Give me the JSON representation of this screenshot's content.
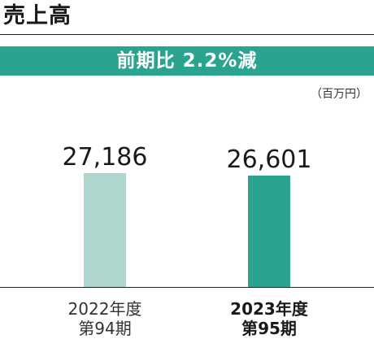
{
  "header": {
    "title": "売上高"
  },
  "banner": {
    "text": "前期比  2.2%減"
  },
  "unit_label": "（百万円）",
  "colors": {
    "bar_prev": "#aed6ce",
    "bar_current": "#2aa48f",
    "banner": "#2aa48f"
  },
  "chart_data": {
    "type": "bar",
    "categories": [
      {
        "line1": "2022年度",
        "line2": "第94期"
      },
      {
        "line1": "2023年度",
        "line2": "第95期"
      }
    ],
    "values": [
      27186,
      26601
    ],
    "value_labels": [
      "27,186",
      "26,601"
    ],
    "title": "売上高",
    "unit": "百万円",
    "xlabel": "",
    "ylabel": "",
    "grid": false,
    "legend": "none"
  }
}
